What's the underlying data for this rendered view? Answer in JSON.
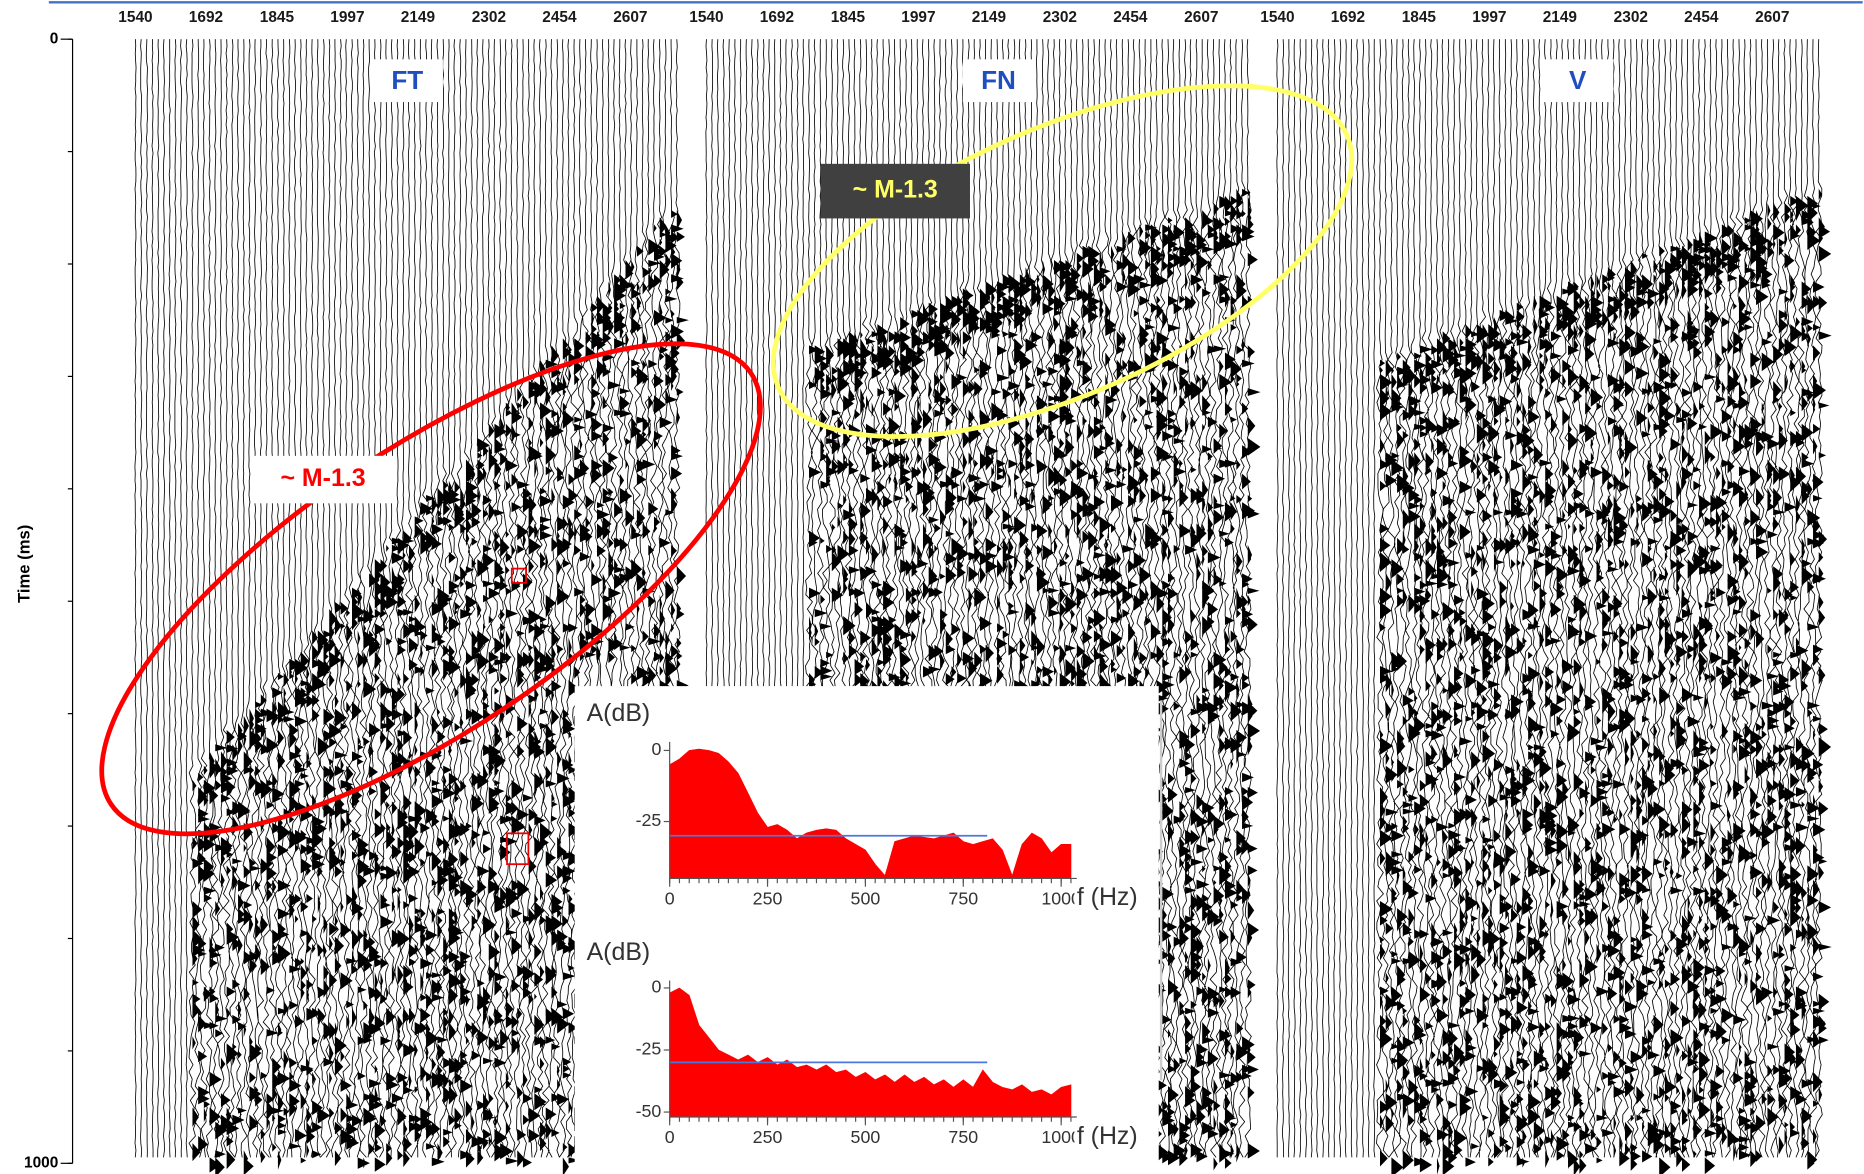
{
  "chart_data": [
    {
      "type": "seismic",
      "y_label": "Time (ms)",
      "ylim": [
        0,
        1000
      ],
      "yticks": [
        0,
        1000
      ],
      "xlim": [
        1494,
        2725
      ],
      "panels": [
        {
          "title": "FT",
          "xticks": [
            1540,
            1692,
            1845,
            1997,
            2149,
            2302,
            2454,
            2607
          ]
        },
        {
          "title": "FN",
          "xticks": [
            1540,
            1692,
            1845,
            1997,
            2149,
            2302,
            2454,
            2607
          ]
        },
        {
          "title": "V",
          "xticks": [
            1540,
            1692,
            1845,
            1997,
            2149,
            2302,
            2454,
            2607
          ]
        }
      ],
      "annotations": [
        {
          "text": "~ M-1.3",
          "color": "#ff0000"
        },
        {
          "text": "~ M-1.3",
          "color": "#ffff66"
        }
      ]
    },
    {
      "type": "area",
      "y_label": "A(dB)",
      "x_label": "f (Hz)",
      "color": "#ff0000",
      "reference_line": -30,
      "xlim": [
        0,
        1040
      ],
      "xticks": [
        0,
        250,
        500,
        750,
        1000
      ],
      "ylim": [
        -45,
        3
      ],
      "yticks": [
        0,
        -25
      ],
      "x": [
        0,
        25,
        50,
        75,
        100,
        125,
        150,
        175,
        200,
        225,
        250,
        275,
        300,
        325,
        350,
        375,
        400,
        425,
        450,
        475,
        500,
        525,
        550,
        575,
        600,
        625,
        650,
        675,
        700,
        725,
        750,
        775,
        800,
        825,
        850,
        875,
        900,
        925,
        950,
        975,
        1000,
        1025
      ],
      "values": [
        -5,
        -3,
        0,
        0.5,
        0,
        -1,
        -4,
        -8,
        -15,
        -22,
        -27,
        -26,
        -28,
        -31,
        -29,
        -28,
        -27.5,
        -28,
        -31,
        -33,
        -35,
        -40,
        -44,
        -32,
        -31,
        -30,
        -30.5,
        -31,
        -30,
        -29,
        -32,
        -33,
        -32,
        -31,
        -35,
        -44,
        -33,
        -29,
        -31,
        -36,
        -33,
        -33
      ]
    },
    {
      "type": "area",
      "y_label": "A(dB)",
      "x_label": "f (Hz)",
      "color": "#ff0000",
      "reference_line": -30,
      "xlim": [
        0,
        1040
      ],
      "xticks": [
        0,
        250,
        500,
        750,
        1000
      ],
      "ylim": [
        -52,
        3
      ],
      "yticks": [
        0,
        -25,
        -50
      ],
      "x": [
        0,
        25,
        50,
        75,
        100,
        125,
        150,
        175,
        200,
        225,
        250,
        275,
        300,
        325,
        350,
        375,
        400,
        425,
        450,
        475,
        500,
        525,
        550,
        575,
        600,
        625,
        650,
        675,
        700,
        725,
        750,
        775,
        800,
        825,
        850,
        875,
        900,
        925,
        950,
        975,
        1000,
        1025
      ],
      "values": [
        -2,
        0,
        -3,
        -15,
        -20,
        -25,
        -27,
        -29,
        -27,
        -30,
        -28,
        -31,
        -29,
        -32,
        -31,
        -33,
        -31,
        -34,
        -33,
        -36,
        -34,
        -37,
        -35,
        -38,
        -35,
        -38,
        -36,
        -39,
        -37,
        -40,
        -37,
        -40,
        -33,
        -38,
        -40,
        -41,
        -39,
        -42,
        -41,
        -43,
        -40,
        -39
      ]
    }
  ]
}
